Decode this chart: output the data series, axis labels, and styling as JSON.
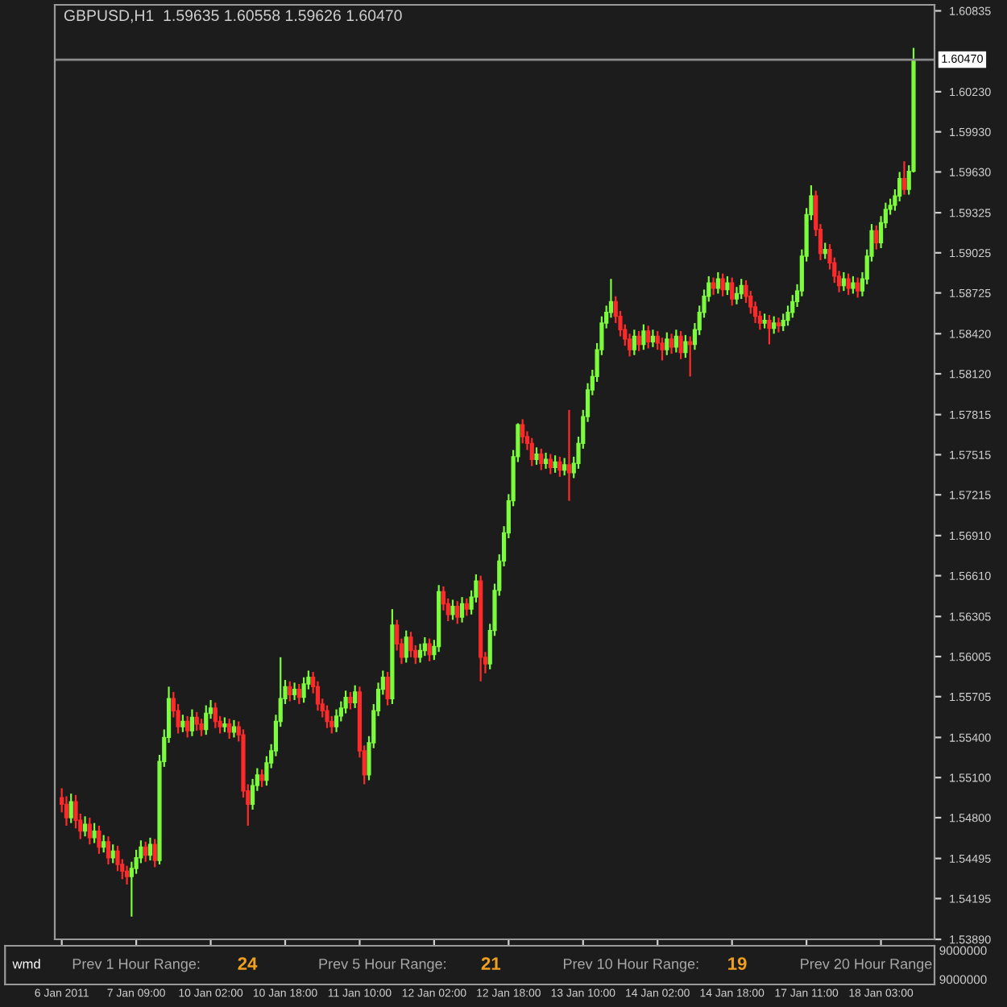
{
  "chart_data": [
    {
      "type": "candlestick",
      "title": "GBPUSD,H1  1.59635 1.60558 1.59626 1.60470",
      "categories": [
        "6 Jan 2011",
        null,
        null,
        null,
        null,
        null,
        null,
        null,
        null,
        null,
        null,
        null,
        null,
        null,
        null,
        null,
        "7 Jan 09:00",
        null,
        null,
        null,
        null,
        null,
        null,
        null,
        null,
        null,
        null,
        null,
        null,
        null,
        null,
        null,
        "10 Jan 02:00",
        null,
        null,
        null,
        null,
        null,
        null,
        null,
        null,
        null,
        null,
        null,
        null,
        null,
        null,
        null,
        "10 Jan 18:00",
        null,
        null,
        null,
        null,
        null,
        null,
        null,
        null,
        null,
        null,
        null,
        null,
        null,
        null,
        null,
        "11 Jan 10:00",
        null,
        null,
        null,
        null,
        null,
        null,
        null,
        null,
        null,
        null,
        null,
        null,
        null,
        null,
        null,
        "12 Jan 02:00",
        null,
        null,
        null,
        null,
        null,
        null,
        null,
        null,
        null,
        null,
        null,
        null,
        null,
        null,
        null,
        "12 Jan 18:00",
        null,
        null,
        null,
        null,
        null,
        null,
        null,
        null,
        null,
        null,
        null,
        null,
        null,
        null,
        null,
        "13 Jan 10:00",
        null,
        null,
        null,
        null,
        null,
        null,
        null,
        null,
        null,
        null,
        null,
        null,
        null,
        null,
        null,
        "14 Jan 02:00",
        null,
        null,
        null,
        null,
        null,
        null,
        null,
        null,
        null,
        null,
        null,
        null,
        null,
        null,
        null,
        "14 Jan 18:00",
        null,
        null,
        null,
        null,
        null,
        null,
        null,
        null,
        null,
        null,
        null,
        null,
        null,
        null,
        null,
        "17 Jan 11:00",
        null,
        null,
        null,
        null,
        null,
        null,
        null,
        null,
        null,
        null,
        null,
        null,
        null,
        null,
        null,
        "18 Jan 03:00",
        null,
        null,
        null,
        null,
        null,
        null,
        null
      ],
      "ohlc": [
        [
          1.5495,
          1.5502,
          1.5484,
          1.549
        ],
        [
          1.549,
          1.5496,
          1.5474,
          1.548
        ],
        [
          1.548,
          1.5498,
          1.5476,
          1.5492
        ],
        [
          1.5492,
          1.5497,
          1.5472,
          1.5478
        ],
        [
          1.5478,
          1.5483,
          1.5464,
          1.547
        ],
        [
          1.547,
          1.5481,
          1.5466,
          1.5475
        ],
        [
          1.5475,
          1.548,
          1.546,
          1.5465
        ],
        [
          1.5465,
          1.5476,
          1.5461,
          1.547
        ],
        [
          1.547,
          1.5474,
          1.5453,
          1.5458
        ],
        [
          1.5458,
          1.5467,
          1.5454,
          1.5462
        ],
        [
          1.5462,
          1.5466,
          1.5445,
          1.545
        ],
        [
          1.545,
          1.546,
          1.5446,
          1.5455
        ],
        [
          1.5455,
          1.5459,
          1.544,
          1.5445
        ],
        [
          1.5445,
          1.5449,
          1.5434,
          1.544
        ],
        [
          1.544,
          1.5444,
          1.543,
          1.5436
        ],
        [
          1.5436,
          1.5447,
          1.5406,
          1.5442
        ],
        [
          1.5442,
          1.5456,
          1.5438,
          1.545
        ],
        [
          1.545,
          1.5463,
          1.5446,
          1.5458
        ],
        [
          1.5458,
          1.5462,
          1.5447,
          1.5452
        ],
        [
          1.5452,
          1.5465,
          1.5448,
          1.546
        ],
        [
          1.546,
          1.5464,
          1.5443,
          1.5448
        ],
        [
          1.5448,
          1.5527,
          1.5445,
          1.5522
        ],
        [
          1.5522,
          1.5546,
          1.5518,
          1.554
        ],
        [
          1.554,
          1.5578,
          1.5536,
          1.5569
        ],
        [
          1.5569,
          1.5574,
          1.5555,
          1.556
        ],
        [
          1.556,
          1.5565,
          1.5543,
          1.5548
        ],
        [
          1.5548,
          1.5557,
          1.5544,
          1.5552
        ],
        [
          1.5552,
          1.5556,
          1.554,
          1.5545
        ],
        [
          1.5545,
          1.5561,
          1.5541,
          1.5555
        ],
        [
          1.5555,
          1.5559,
          1.5545,
          1.555
        ],
        [
          1.555,
          1.5554,
          1.5541,
          1.5546
        ],
        [
          1.5546,
          1.5564,
          1.5542,
          1.5558
        ],
        [
          1.5558,
          1.5568,
          1.5554,
          1.5562
        ],
        [
          1.5562,
          1.5566,
          1.5547,
          1.5552
        ],
        [
          1.5552,
          1.5556,
          1.5543,
          1.5548
        ],
        [
          1.5548,
          1.5555,
          1.5544,
          1.555
        ],
        [
          1.555,
          1.5554,
          1.5539,
          1.5544
        ],
        [
          1.5544,
          1.5553,
          1.554,
          1.5548
        ],
        [
          1.5548,
          1.5552,
          1.5537,
          1.5542
        ],
        [
          1.5542,
          1.5546,
          1.5495,
          1.55
        ],
        [
          1.55,
          1.5505,
          1.5474,
          1.549
        ],
        [
          1.549,
          1.5509,
          1.5486,
          1.5504
        ],
        [
          1.5504,
          1.5517,
          1.55,
          1.5512
        ],
        [
          1.5512,
          1.5516,
          1.5503,
          1.5508
        ],
        [
          1.5508,
          1.5526,
          1.5504,
          1.5521
        ],
        [
          1.5521,
          1.5535,
          1.5517,
          1.553
        ],
        [
          1.553,
          1.5557,
          1.5526,
          1.5552
        ],
        [
          1.5552,
          1.56,
          1.5548,
          1.5569
        ],
        [
          1.5569,
          1.5583,
          1.5565,
          1.5578
        ],
        [
          1.5578,
          1.5582,
          1.5567,
          1.5572
        ],
        [
          1.5572,
          1.5581,
          1.5568,
          1.5576
        ],
        [
          1.5576,
          1.558,
          1.5565,
          1.557
        ],
        [
          1.557,
          1.5585,
          1.5566,
          1.558
        ],
        [
          1.558,
          1.559,
          1.5576,
          1.5585
        ],
        [
          1.5585,
          1.5589,
          1.5573,
          1.5578
        ],
        [
          1.5578,
          1.5582,
          1.556,
          1.5565
        ],
        [
          1.5565,
          1.5569,
          1.5555,
          1.556
        ],
        [
          1.556,
          1.5564,
          1.5547,
          1.5552
        ],
        [
          1.5552,
          1.5556,
          1.5543,
          1.5548
        ],
        [
          1.5548,
          1.5561,
          1.5544,
          1.5556
        ],
        [
          1.5556,
          1.5567,
          1.5552,
          1.5562
        ],
        [
          1.5562,
          1.5575,
          1.5558,
          1.557
        ],
        [
          1.557,
          1.5574,
          1.5561,
          1.5566
        ],
        [
          1.5566,
          1.5579,
          1.5562,
          1.5574
        ],
        [
          1.5574,
          1.5578,
          1.5525,
          1.553
        ],
        [
          1.553,
          1.5534,
          1.5505,
          1.5512
        ],
        [
          1.5512,
          1.5541,
          1.5508,
          1.5536
        ],
        [
          1.5536,
          1.5565,
          1.5532,
          1.556
        ],
        [
          1.556,
          1.5581,
          1.5556,
          1.5576
        ],
        [
          1.5576,
          1.559,
          1.5572,
          1.5585
        ],
        [
          1.5585,
          1.5589,
          1.5564,
          1.5569
        ],
        [
          1.5569,
          1.5636,
          1.5565,
          1.5624
        ],
        [
          1.5624,
          1.5628,
          1.5605,
          1.561
        ],
        [
          1.561,
          1.5614,
          1.5595,
          1.56
        ],
        [
          1.56,
          1.562,
          1.5596,
          1.5615
        ],
        [
          1.5615,
          1.5619,
          1.56,
          1.5605
        ],
        [
          1.5605,
          1.5609,
          1.5595,
          1.56
        ],
        [
          1.56,
          1.561,
          1.5596,
          1.5605
        ],
        [
          1.5605,
          1.5615,
          1.5601,
          1.561
        ],
        [
          1.561,
          1.5614,
          1.5597,
          1.5602
        ],
        [
          1.5602,
          1.5613,
          1.5598,
          1.5608
        ],
        [
          1.5608,
          1.5654,
          1.5604,
          1.5649
        ],
        [
          1.5649,
          1.5653,
          1.5635,
          1.564
        ],
        [
          1.564,
          1.5644,
          1.5627,
          1.5632
        ],
        [
          1.5632,
          1.5643,
          1.5628,
          1.5638
        ],
        [
          1.5638,
          1.5642,
          1.5625,
          1.563
        ],
        [
          1.563,
          1.5645,
          1.5626,
          1.564
        ],
        [
          1.564,
          1.5644,
          1.5631,
          1.5636
        ],
        [
          1.5636,
          1.565,
          1.5632,
          1.5645
        ],
        [
          1.5645,
          1.5662,
          1.5641,
          1.5657
        ],
        [
          1.5657,
          1.5661,
          1.5582,
          1.56
        ],
        [
          1.56,
          1.5604,
          1.5588,
          1.5595
        ],
        [
          1.5595,
          1.5625,
          1.5591,
          1.562
        ],
        [
          1.562,
          1.5655,
          1.5616,
          1.565
        ],
        [
          1.565,
          1.5677,
          1.5646,
          1.5672
        ],
        [
          1.5672,
          1.5698,
          1.5668,
          1.5693
        ],
        [
          1.5693,
          1.5722,
          1.5689,
          1.5717
        ],
        [
          1.5717,
          1.5755,
          1.5713,
          1.575
        ],
        [
          1.575,
          1.5775,
          1.5746,
          1.5774
        ],
        [
          1.5774,
          1.5778,
          1.576,
          1.5765
        ],
        [
          1.5765,
          1.5769,
          1.5755,
          1.576
        ],
        [
          1.576,
          1.5764,
          1.5743,
          1.5748
        ],
        [
          1.5748,
          1.5757,
          1.5744,
          1.5752
        ],
        [
          1.5752,
          1.5756,
          1.574,
          1.5745
        ],
        [
          1.5745,
          1.5753,
          1.5741,
          1.5748
        ],
        [
          1.5748,
          1.5752,
          1.5737,
          1.5742
        ],
        [
          1.5742,
          1.5751,
          1.5738,
          1.5746
        ],
        [
          1.5746,
          1.575,
          1.5735,
          1.574
        ],
        [
          1.574,
          1.5749,
          1.5736,
          1.5744
        ],
        [
          1.5744,
          1.5785,
          1.5717,
          1.5738
        ],
        [
          1.5738,
          1.575,
          1.5734,
          1.5745
        ],
        [
          1.5745,
          1.5765,
          1.5741,
          1.576
        ],
        [
          1.576,
          1.5785,
          1.5756,
          1.578
        ],
        [
          1.578,
          1.5805,
          1.5776,
          1.58
        ],
        [
          1.58,
          1.5815,
          1.5796,
          1.581
        ],
        [
          1.581,
          1.5835,
          1.5806,
          1.583
        ],
        [
          1.583,
          1.5855,
          1.5826,
          1.585
        ],
        [
          1.585,
          1.5863,
          1.5846,
          1.5858
        ],
        [
          1.5858,
          1.5883,
          1.5854,
          1.5866
        ],
        [
          1.5866,
          1.587,
          1.585,
          1.5855
        ],
        [
          1.5855,
          1.5859,
          1.584,
          1.5845
        ],
        [
          1.5845,
          1.5849,
          1.5833,
          1.5838
        ],
        [
          1.5838,
          1.5842,
          1.5825,
          1.583
        ],
        [
          1.583,
          1.5845,
          1.5826,
          1.584
        ],
        [
          1.584,
          1.5844,
          1.5829,
          1.5834
        ],
        [
          1.5834,
          1.5849,
          1.583,
          1.5844
        ],
        [
          1.5844,
          1.5848,
          1.5831,
          1.5836
        ],
        [
          1.5836,
          1.5845,
          1.5832,
          1.584
        ],
        [
          1.584,
          1.5844,
          1.583,
          1.5835
        ],
        [
          1.5835,
          1.5839,
          1.5822,
          1.583
        ],
        [
          1.583,
          1.5843,
          1.5826,
          1.5838
        ],
        [
          1.5838,
          1.5842,
          1.5827,
          1.5832
        ],
        [
          1.5832,
          1.5845,
          1.5828,
          1.584
        ],
        [
          1.584,
          1.5844,
          1.5823,
          1.5828
        ],
        [
          1.5828,
          1.5841,
          1.5824,
          1.5836
        ],
        [
          1.5836,
          1.584,
          1.581,
          1.5834
        ],
        [
          1.5834,
          1.585,
          1.583,
          1.5845
        ],
        [
          1.5845,
          1.5863,
          1.5841,
          1.5858
        ],
        [
          1.5858,
          1.5875,
          1.5854,
          1.587
        ],
        [
          1.587,
          1.5885,
          1.5866,
          1.588
        ],
        [
          1.588,
          1.5884,
          1.5871,
          1.5876
        ],
        [
          1.5876,
          1.5888,
          1.5872,
          1.5883
        ],
        [
          1.5883,
          1.5887,
          1.587,
          1.5875
        ],
        [
          1.5875,
          1.5885,
          1.5871,
          1.588
        ],
        [
          1.588,
          1.5884,
          1.5863,
          1.5868
        ],
        [
          1.5868,
          1.5877,
          1.5864,
          1.5872
        ],
        [
          1.5872,
          1.5883,
          1.5868,
          1.5878
        ],
        [
          1.5878,
          1.5882,
          1.5865,
          1.587
        ],
        [
          1.587,
          1.5874,
          1.5857,
          1.5862
        ],
        [
          1.5862,
          1.5866,
          1.585,
          1.5855
        ],
        [
          1.5855,
          1.5859,
          1.5845,
          1.585
        ],
        [
          1.585,
          1.5857,
          1.5846,
          1.5852
        ],
        [
          1.5852,
          1.5856,
          1.5834,
          1.5846
        ],
        [
          1.5846,
          1.5855,
          1.5842,
          1.585
        ],
        [
          1.585,
          1.5854,
          1.5843,
          1.5848
        ],
        [
          1.5848,
          1.5857,
          1.5844,
          1.5852
        ],
        [
          1.5852,
          1.5863,
          1.5848,
          1.5858
        ],
        [
          1.5858,
          1.5871,
          1.5854,
          1.5866
        ],
        [
          1.5866,
          1.5879,
          1.5862,
          1.5874
        ],
        [
          1.5874,
          1.5905,
          1.587,
          1.59
        ],
        [
          1.59,
          1.5936,
          1.5896,
          1.5931
        ],
        [
          1.5931,
          1.5953,
          1.5927,
          1.5945
        ],
        [
          1.5945,
          1.5949,
          1.5915,
          1.592
        ],
        [
          1.592,
          1.5924,
          1.5897,
          1.5902
        ],
        [
          1.5902,
          1.591,
          1.5898,
          1.5905
        ],
        [
          1.5905,
          1.5909,
          1.589,
          1.5895
        ],
        [
          1.5895,
          1.5899,
          1.588,
          1.5885
        ],
        [
          1.5885,
          1.5889,
          1.5873,
          1.5878
        ],
        [
          1.5878,
          1.5888,
          1.5874,
          1.5883
        ],
        [
          1.5883,
          1.5887,
          1.5871,
          1.5876
        ],
        [
          1.5876,
          1.5885,
          1.5872,
          1.588
        ],
        [
          1.588,
          1.5884,
          1.5869,
          1.5874
        ],
        [
          1.5874,
          1.5888,
          1.587,
          1.5883
        ],
        [
          1.5883,
          1.5905,
          1.5879,
          1.59
        ],
        [
          1.59,
          1.5924,
          1.5896,
          1.5919
        ],
        [
          1.5919,
          1.5923,
          1.5905,
          1.591
        ],
        [
          1.591,
          1.593,
          1.5906,
          1.5925
        ],
        [
          1.5925,
          1.594,
          1.5921,
          1.5935
        ],
        [
          1.5935,
          1.5943,
          1.5931,
          1.5938
        ],
        [
          1.5938,
          1.595,
          1.5934,
          1.5945
        ],
        [
          1.5945,
          1.5963,
          1.5941,
          1.5958
        ],
        [
          1.5958,
          1.5971,
          1.5946,
          1.595
        ],
        [
          1.595,
          1.5968,
          1.5946,
          1.59635
        ],
        [
          1.59635,
          1.60558,
          1.59626,
          1.6047
        ]
      ],
      "ylim": [
        1.5389,
        1.6088
      ],
      "yticks": [
        {
          "value": 1.5389,
          "label": "1.53890"
        },
        1.54195,
        1.54495,
        {
          "value": 1.548,
          "label": "1.54800"
        },
        {
          "value": 1.551,
          "label": "1.55100"
        },
        {
          "value": 1.554,
          "label": "1.55400"
        },
        1.55705,
        1.56005,
        1.56305,
        {
          "value": 1.5661,
          "label": "1.56610"
        },
        {
          "value": 1.5691,
          "label": "1.56910"
        },
        1.57215,
        1.57515,
        1.57815,
        {
          "value": 1.5812,
          "label": "1.58120"
        },
        {
          "value": 1.5842,
          "label": "1.58420"
        },
        1.58725,
        1.59025,
        1.59325,
        {
          "value": 1.5963,
          "label": "1.59630"
        },
        {
          "value": 1.5993,
          "label": "1.59930"
        },
        {
          "value": 1.6023,
          "label": "1.60230"
        },
        1.60835
      ],
      "ref_lines": [
        {
          "axis": "y",
          "value": 1.6047,
          "label": "1.60470",
          "color": "#8c8c8c"
        }
      ],
      "grid": false
    },
    {
      "type": "other",
      "annotations": [
        "wmd",
        "Prev 1 Hour Range:",
        "24",
        "Prev 5 Hour Range:",
        "21",
        "Prev 10 Hour Range:",
        "19",
        "Prev 20 Hour Range",
        "9000000",
        "9000000"
      ]
    }
  ]
}
